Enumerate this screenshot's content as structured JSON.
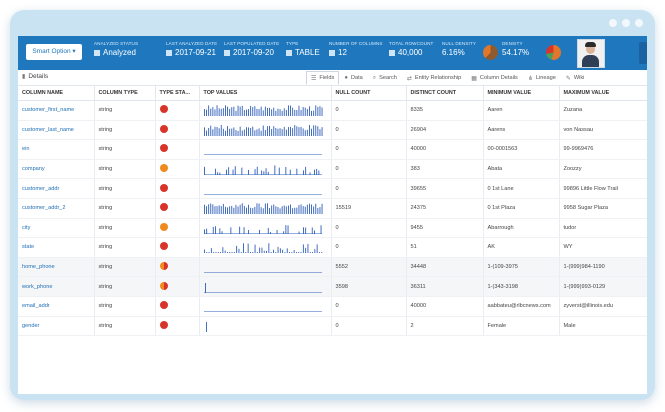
{
  "header": {
    "smart_option_label": "Smart Option ▾",
    "analyzed_status": {
      "label": "ANALYZED STATUS",
      "value": "Analyzed"
    },
    "last_analyzed_date": {
      "label": "LAST ANALYZED DATE",
      "value": "2017-09-21"
    },
    "last_populated_date": {
      "label": "LAST POPULATED DATE",
      "value": "2017-09-20"
    },
    "type": {
      "label": "TYPE",
      "value": "TABLE"
    },
    "number_of_columns": {
      "label": "NUMBER OF COLUMNS",
      "value": "12"
    },
    "total_row_count": {
      "label": "TOTAL ROWCOUNT",
      "value": "40,000"
    },
    "null_density": {
      "label": "NULL DENSITY",
      "value": "6.16%"
    },
    "density": {
      "label": "DENSITY",
      "value": "54.17%"
    },
    "colors": {
      "bar": "#1f78be",
      "pie_orange": "#e2762a",
      "pie_brown": "#8e5a2e",
      "pie_green": "#4aa05a"
    }
  },
  "toolbar": {
    "details_label": "Details",
    "details_icon": "bar-chart-icon",
    "tabs": [
      {
        "label": "Fields",
        "icon": "list-icon",
        "active": true
      },
      {
        "label": "Data",
        "icon": "database-icon",
        "active": false
      },
      {
        "label": "Search",
        "icon": "search-icon",
        "active": false
      },
      {
        "label": "Entity Relationship",
        "icon": "relationship-icon",
        "active": false
      },
      {
        "label": "Column Details",
        "icon": "table-icon",
        "active": false
      },
      {
        "label": "Lineage",
        "icon": "lineage-icon",
        "active": false
      },
      {
        "label": "Wiki",
        "icon": "wiki-icon",
        "active": false
      }
    ]
  },
  "table": {
    "headers": [
      "COLUMN NAME",
      "COLUMN TYPE",
      "TYPE STA...",
      "TOP VALUES",
      "NULL COUNT",
      "DISTINCT COUNT",
      "MINIMUM VALUE",
      "MAXIMUM VALUE"
    ],
    "status_colors": {
      "red": "#d8352a",
      "orange": "#ef8a1e",
      "mixed": "#e06a25"
    },
    "rows": [
      {
        "name": "customer_first_name",
        "type": "string",
        "status": "red",
        "spark": "dense",
        "null_count": "0",
        "distinct": "8335",
        "min": "Aaren",
        "max": "Zuzana"
      },
      {
        "name": "customer_last_name",
        "type": "string",
        "status": "red",
        "spark": "dense",
        "null_count": "0",
        "distinct": "26904",
        "min": "Aarens",
        "max": "von Nassau"
      },
      {
        "name": "ein",
        "type": "string",
        "status": "red",
        "spark": "flat",
        "null_count": "0",
        "distinct": "40000",
        "min": "00-0001563",
        "max": "99-9969476"
      },
      {
        "name": "company",
        "type": "string",
        "status": "orange",
        "spark": "sparse",
        "null_count": "0",
        "distinct": "383",
        "min": "Abata",
        "max": "Zoozzy"
      },
      {
        "name": "customer_addr",
        "type": "string",
        "status": "red",
        "spark": "flat",
        "null_count": "0",
        "distinct": "39655",
        "min": "0 1st Lane",
        "max": "99896 Little Flow Trail"
      },
      {
        "name": "customer_addr_2",
        "type": "string",
        "status": "red",
        "spark": "dense",
        "null_count": "15519",
        "distinct": "24375",
        "min": "0 1st Plaza",
        "max": "9958 Sugar Plaza"
      },
      {
        "name": "city",
        "type": "string",
        "status": "orange",
        "spark": "sparse",
        "null_count": "0",
        "distinct": "9455",
        "min": "Abarrough",
        "max": "tudor"
      },
      {
        "name": "state",
        "type": "string",
        "status": "red",
        "spark": "medium",
        "null_count": "0",
        "distinct": "51",
        "min": "AK",
        "max": "WY"
      },
      {
        "name": "home_phone",
        "type": "string",
        "status": "mixed",
        "spark": "flat",
        "null_count": "5552",
        "distinct": "34448",
        "min": "1-(109-3975",
        "max": "1-(999)984-1190"
      },
      {
        "name": "work_phone",
        "type": "string",
        "status": "mixed",
        "spark": "single",
        "null_count": "3598",
        "distinct": "36311",
        "min": "1-(343-3198",
        "max": "1-(999)993-0129"
      },
      {
        "name": "email_addr",
        "type": "string",
        "status": "red",
        "spark": "flat",
        "null_count": "0",
        "distinct": "40000",
        "min": "aabbateu@rlbcnews.com",
        "max": "zyverst@illinois.edu"
      },
      {
        "name": "gender",
        "type": "string",
        "status": "red",
        "spark": "single2",
        "null_count": "0",
        "distinct": "2",
        "min": "Female",
        "max": "Male"
      }
    ]
  }
}
